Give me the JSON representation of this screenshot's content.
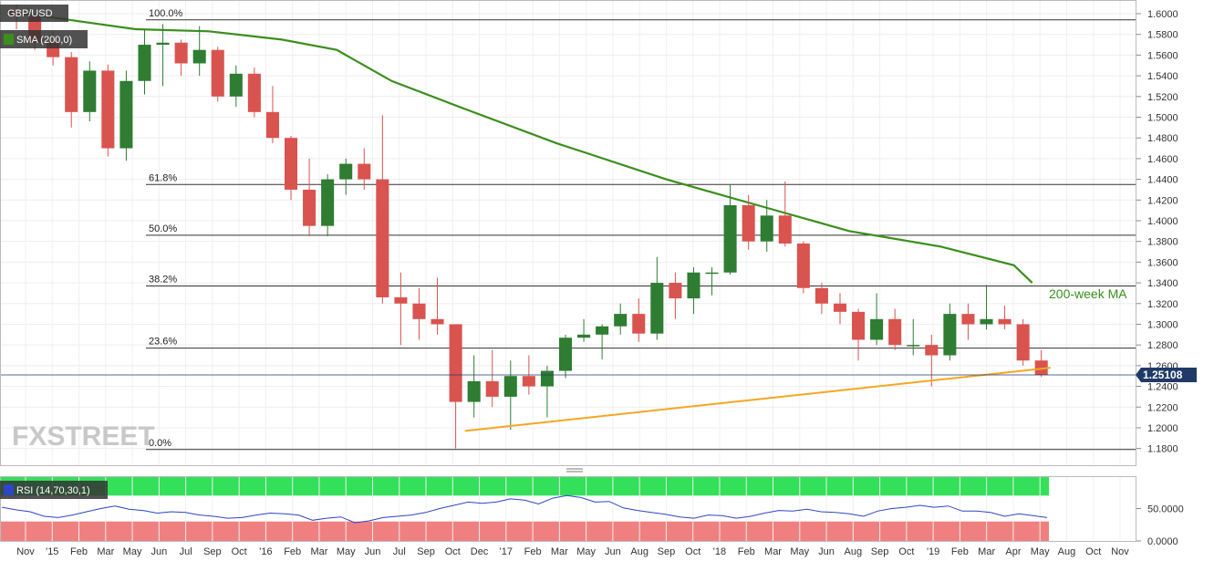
{
  "chart_data": [
    {
      "type": "candlestick",
      "symbol": "GBP/USD",
      "indicator_label": "SMA (200,0)",
      "last_price": "1.25108",
      "ylim": [
        1.17,
        1.6
      ],
      "y_ticks": [
        "1.6000",
        "1.5800",
        "1.5600",
        "1.5400",
        "1.5200",
        "1.5000",
        "1.4800",
        "1.4600",
        "1.4400",
        "1.4200",
        "1.4000",
        "1.3800",
        "1.3600",
        "1.3400",
        "1.3200",
        "1.3000",
        "1.2800",
        "1.2600",
        "1.2400",
        "1.2200",
        "1.2000",
        "1.1800"
      ],
      "x_ticks": [
        "Nov",
        "'15",
        "Feb",
        "Mar",
        "May",
        "Jun",
        "Jul",
        "Sep",
        "Oct",
        "'16",
        "Feb",
        "Mar",
        "May",
        "Jun",
        "Jul",
        "Sep",
        "Oct",
        "Dec",
        "'17",
        "Feb",
        "Mar",
        "May",
        "Jun",
        "Aug",
        "Sep",
        "Oct",
        "'18",
        "Feb",
        "Mar",
        "May",
        "Jun",
        "Aug",
        "Sep",
        "Oct",
        "'19",
        "Feb",
        "Mar",
        "Apr",
        "May",
        "Aug",
        "Oct",
        "Nov"
      ],
      "fib_levels": [
        {
          "label": "100.0%",
          "value": 1.594
        },
        {
          "label": "61.8%",
          "value": 1.435
        },
        {
          "label": "50.0%",
          "value": 1.386
        },
        {
          "label": "38.2%",
          "value": 1.337
        },
        {
          "label": "23.6%",
          "value": 1.277
        },
        {
          "label": "0.0%",
          "value": 1.179
        }
      ],
      "sma_label": "200-week MA",
      "sma": [
        {
          "x": "Oct 2014",
          "y": 1.602
        },
        {
          "x": "Jan 2015",
          "y": 1.595
        },
        {
          "x": "May 2015",
          "y": 1.585
        },
        {
          "x": "Sep 2015",
          "y": 1.583
        },
        {
          "x": "Jan 2016",
          "y": 1.575
        },
        {
          "x": "Apr 2016",
          "y": 1.565
        },
        {
          "x": "Jul 2016",
          "y": 1.535
        },
        {
          "x": "Nov 2016",
          "y": 1.508
        },
        {
          "x": "Apr 2017",
          "y": 1.475
        },
        {
          "x": "Oct 2017",
          "y": 1.44
        },
        {
          "x": "Mar 2018",
          "y": 1.415
        },
        {
          "x": "Aug 2018",
          "y": 1.39
        },
        {
          "x": "Jan 2019",
          "y": 1.375
        },
        {
          "x": "May 2019",
          "y": 1.357
        },
        {
          "x": "Jun 2019",
          "y": 1.34
        }
      ],
      "trendline": [
        {
          "x": "Nov 2016",
          "y": 1.197
        },
        {
          "x": "Jul 2019",
          "y": 1.258
        }
      ],
      "candles": [
        {
          "x": "Oct 2014",
          "o": 1.602,
          "h": 1.609,
          "l": 1.585,
          "c": 1.598
        },
        {
          "x": "Nov 2014",
          "o": 1.598,
          "h": 1.599,
          "l": 1.565,
          "c": 1.572
        },
        {
          "x": "Dec 2014",
          "o": 1.572,
          "h": 1.583,
          "l": 1.55,
          "c": 1.558
        },
        {
          "x": "Jan 2015",
          "o": 1.558,
          "h": 1.563,
          "l": 1.49,
          "c": 1.505
        },
        {
          "x": "Feb 2015",
          "o": 1.505,
          "h": 1.554,
          "l": 1.496,
          "c": 1.545
        },
        {
          "x": "Mar 2015",
          "o": 1.545,
          "h": 1.551,
          "l": 1.462,
          "c": 1.47
        },
        {
          "x": "Apr 2015",
          "o": 1.47,
          "h": 1.545,
          "l": 1.458,
          "c": 1.535
        },
        {
          "x": "May 2015",
          "o": 1.535,
          "h": 1.585,
          "l": 1.522,
          "c": 1.57
        },
        {
          "x": "Jun 2015",
          "o": 1.57,
          "h": 1.59,
          "l": 1.53,
          "c": 1.572
        },
        {
          "x": "Jul 2015",
          "o": 1.572,
          "h": 1.575,
          "l": 1.54,
          "c": 1.552
        },
        {
          "x": "Aug 2015",
          "o": 1.552,
          "h": 1.588,
          "l": 1.54,
          "c": 1.565
        },
        {
          "x": "Sep 2015",
          "o": 1.565,
          "h": 1.568,
          "l": 1.515,
          "c": 1.52
        },
        {
          "x": "Oct 2015",
          "o": 1.52,
          "h": 1.55,
          "l": 1.51,
          "c": 1.542
        },
        {
          "x": "Nov 2015",
          "o": 1.542,
          "h": 1.548,
          "l": 1.5,
          "c": 1.505
        },
        {
          "x": "Dec 2015",
          "o": 1.505,
          "h": 1.53,
          "l": 1.475,
          "c": 1.48
        },
        {
          "x": "Jan 2016",
          "o": 1.48,
          "h": 1.482,
          "l": 1.42,
          "c": 1.43
        },
        {
          "x": "Feb 2016",
          "o": 1.43,
          "h": 1.46,
          "l": 1.385,
          "c": 1.395
        },
        {
          "x": "Mar 2016",
          "o": 1.395,
          "h": 1.445,
          "l": 1.385,
          "c": 1.44
        },
        {
          "x": "Apr 2016",
          "o": 1.44,
          "h": 1.46,
          "l": 1.425,
          "c": 1.455
        },
        {
          "x": "May 2016",
          "o": 1.455,
          "h": 1.47,
          "l": 1.43,
          "c": 1.44
        },
        {
          "x": "Jun 2016",
          "o": 1.44,
          "h": 1.502,
          "l": 1.32,
          "c": 1.326
        },
        {
          "x": "Jul 2016",
          "o": 1.326,
          "h": 1.35,
          "l": 1.28,
          "c": 1.32
        },
        {
          "x": "Aug 2016",
          "o": 1.32,
          "h": 1.335,
          "l": 1.285,
          "c": 1.305
        },
        {
          "x": "Sep 2016",
          "o": 1.305,
          "h": 1.345,
          "l": 1.29,
          "c": 1.3
        },
        {
          "x": "Oct 2016",
          "o": 1.3,
          "h": 1.3,
          "l": 1.18,
          "c": 1.225
        },
        {
          "x": "Nov 2016",
          "o": 1.225,
          "h": 1.27,
          "l": 1.21,
          "c": 1.245
        },
        {
          "x": "Dec 2016",
          "o": 1.245,
          "h": 1.275,
          "l": 1.22,
          "c": 1.23
        },
        {
          "x": "Jan 2017",
          "o": 1.23,
          "h": 1.265,
          "l": 1.198,
          "c": 1.25
        },
        {
          "x": "Feb 2017",
          "o": 1.25,
          "h": 1.27,
          "l": 1.232,
          "c": 1.24
        },
        {
          "x": "Mar 2017",
          "o": 1.24,
          "h": 1.26,
          "l": 1.21,
          "c": 1.255
        },
        {
          "x": "Apr 2017",
          "o": 1.255,
          "h": 1.29,
          "l": 1.248,
          "c": 1.287
        },
        {
          "x": "May 2017",
          "o": 1.287,
          "h": 1.305,
          "l": 1.283,
          "c": 1.29
        },
        {
          "x": "Jun 2017",
          "o": 1.29,
          "h": 1.3,
          "l": 1.266,
          "c": 1.298
        },
        {
          "x": "Jul 2017",
          "o": 1.298,
          "h": 1.32,
          "l": 1.29,
          "c": 1.31
        },
        {
          "x": "Aug 2017",
          "o": 1.31,
          "h": 1.325,
          "l": 1.283,
          "c": 1.291
        },
        {
          "x": "Sep 2017",
          "o": 1.291,
          "h": 1.365,
          "l": 1.285,
          "c": 1.34
        },
        {
          "x": "Oct 2017",
          "o": 1.34,
          "h": 1.35,
          "l": 1.305,
          "c": 1.325
        },
        {
          "x": "Nov 2017",
          "o": 1.325,
          "h": 1.355,
          "l": 1.31,
          "c": 1.35
        },
        {
          "x": "Dec 2017",
          "o": 1.35,
          "h": 1.355,
          "l": 1.328,
          "c": 1.35
        },
        {
          "x": "Jan 2018",
          "o": 1.35,
          "h": 1.435,
          "l": 1.348,
          "c": 1.415
        },
        {
          "x": "Feb 2018",
          "o": 1.415,
          "h": 1.425,
          "l": 1.372,
          "c": 1.38
        },
        {
          "x": "Mar 2018",
          "o": 1.38,
          "h": 1.42,
          "l": 1.37,
          "c": 1.405
        },
        {
          "x": "Apr 2018",
          "o": 1.405,
          "h": 1.438,
          "l": 1.375,
          "c": 1.378
        },
        {
          "x": "May 2018",
          "o": 1.378,
          "h": 1.38,
          "l": 1.33,
          "c": 1.335
        },
        {
          "x": "Jun 2018",
          "o": 1.335,
          "h": 1.34,
          "l": 1.31,
          "c": 1.32
        },
        {
          "x": "Jul 2018",
          "o": 1.32,
          "h": 1.33,
          "l": 1.3,
          "c": 1.312
        },
        {
          "x": "Aug 2018",
          "o": 1.312,
          "h": 1.315,
          "l": 1.265,
          "c": 1.285
        },
        {
          "x": "Sep 2018",
          "o": 1.285,
          "h": 1.33,
          "l": 1.28,
          "c": 1.305
        },
        {
          "x": "Oct 2018",
          "o": 1.305,
          "h": 1.315,
          "l": 1.275,
          "c": 1.28
        },
        {
          "x": "Nov 2018",
          "o": 1.28,
          "h": 1.305,
          "l": 1.27,
          "c": 1.28
        },
        {
          "x": "Dec 2018",
          "o": 1.28,
          "h": 1.29,
          "l": 1.24,
          "c": 1.27
        },
        {
          "x": "Jan 2019",
          "o": 1.27,
          "h": 1.32,
          "l": 1.265,
          "c": 1.31
        },
        {
          "x": "Feb 2019",
          "o": 1.31,
          "h": 1.32,
          "l": 1.285,
          "c": 1.3
        },
        {
          "x": "Mar 2019",
          "o": 1.3,
          "h": 1.338,
          "l": 1.295,
          "c": 1.305
        },
        {
          "x": "Apr 2019",
          "o": 1.305,
          "h": 1.318,
          "l": 1.295,
          "c": 1.3
        },
        {
          "x": "May 2019",
          "o": 1.3,
          "h": 1.305,
          "l": 1.26,
          "c": 1.265
        },
        {
          "x": "Jun 2019",
          "o": 1.265,
          "h": 1.275,
          "l": 1.249,
          "c": 1.251
        }
      ]
    },
    {
      "type": "line",
      "indicator_label": "RSI (14,70,30,1)",
      "ylim": [
        0,
        100
      ],
      "y_ticks": [
        "50.0000",
        "0.0000"
      ],
      "overbought": 70,
      "oversold": 30,
      "values": [
        52,
        48,
        45,
        38,
        36,
        40,
        45,
        50,
        54,
        49,
        47,
        43,
        45,
        44,
        40,
        38,
        35,
        36,
        40,
        43,
        42,
        40,
        32,
        35,
        37,
        28,
        31,
        36,
        38,
        40,
        44,
        50,
        55,
        60,
        58,
        60,
        65,
        63,
        57,
        66,
        70,
        67,
        60,
        61,
        51,
        47,
        44,
        41,
        37,
        35,
        40,
        39,
        35,
        38,
        43,
        47,
        46,
        49,
        45,
        44,
        42,
        38,
        46,
        50,
        52,
        55,
        52,
        54,
        46,
        46,
        44,
        38,
        42,
        39,
        36
      ]
    }
  ],
  "colors": {
    "bull": "#2e7d32",
    "bear": "#d9534f",
    "sma": "#3a8f1c",
    "trendline": "#f5a623",
    "fib_line": "#333333",
    "rsi_line": "#2d46c8",
    "rsi_overbought": "#33e05a",
    "rsi_oversold": "#f08080",
    "price_tag": "#1f3a68"
  },
  "watermark": "FXSTREET"
}
